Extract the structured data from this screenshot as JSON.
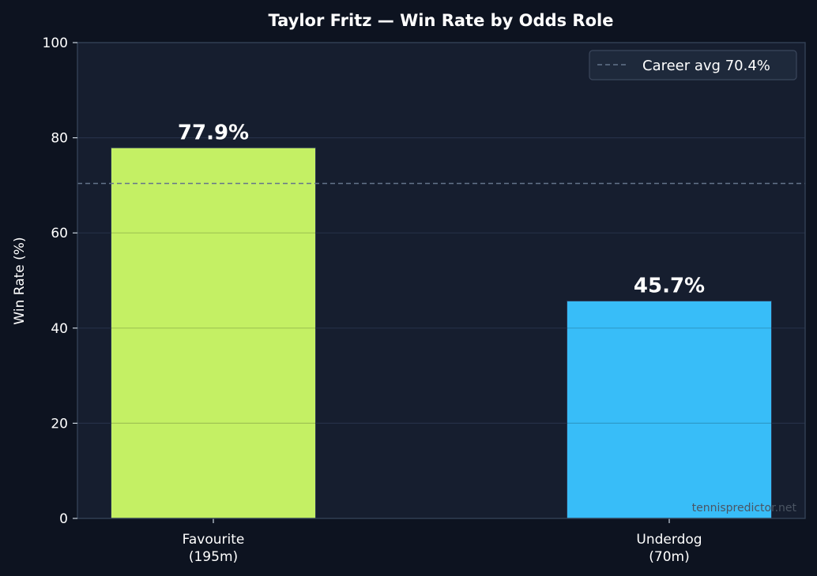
{
  "colors": {
    "page_background": "#0d1320",
    "plot_background": "#161e2f",
    "favourite_bar": "#c4f064",
    "underdog_bar": "#38bdf8",
    "average_line": "#64748b",
    "text": "#ffffff"
  },
  "chart_data": {
    "type": "bar",
    "title": "Taylor Fritz — Win Rate by Odds Role",
    "xlabel": "",
    "ylabel": "Win Rate (%)",
    "ylim": [
      0,
      100
    ],
    "yticks": [
      0,
      20,
      40,
      60,
      80,
      100
    ],
    "grid": true,
    "categories": [
      "Favourite\n(195m)",
      "Underdog\n(70m)"
    ],
    "values": [
      77.9,
      45.7
    ],
    "value_labels": [
      "77.9%",
      "45.7%"
    ],
    "bar_colors": [
      "#c4f064",
      "#38bdf8"
    ],
    "reference_line": {
      "value": 70.4,
      "label": "Career avg 70.4%",
      "style": "dashed"
    },
    "legend_position": "top-right",
    "watermark": "tennispredictor.net"
  }
}
